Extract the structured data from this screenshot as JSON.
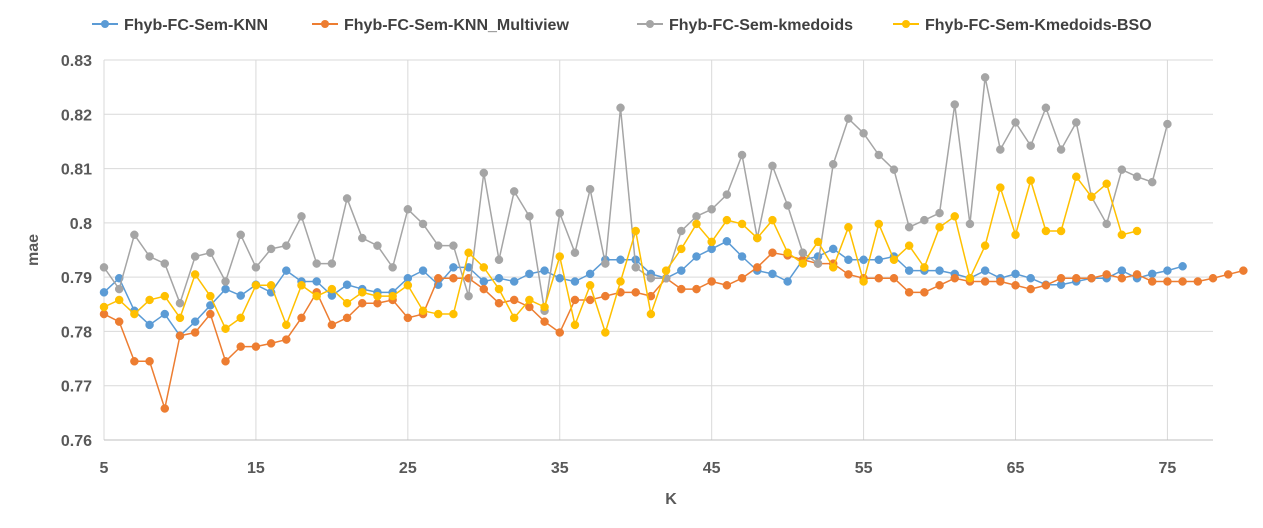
{
  "chart_data": {
    "type": "line",
    "title": "",
    "xlabel": "K",
    "ylabel": "mae",
    "xlim": [
      5,
      78
    ],
    "ylim": [
      0.76,
      0.83
    ],
    "x_ticks": [
      5,
      15,
      25,
      35,
      45,
      55,
      65,
      75
    ],
    "y_ticks": [
      0.76,
      0.77,
      0.78,
      0.79,
      0.8,
      0.81,
      0.82,
      0.83
    ],
    "x_tick_labels": [
      "5",
      "15",
      "25",
      "35",
      "45",
      "55",
      "65",
      "75"
    ],
    "y_tick_labels": [
      "0.76",
      "0.77",
      "0.78",
      "0.79",
      "0.8",
      "0.81",
      "0.82",
      "0.83"
    ],
    "grid": true,
    "legend_position": "top",
    "series": [
      {
        "name": "Fhyb-FC-Sem-KNN",
        "color": "#5B9BD5",
        "x_start": 5,
        "values": [
          0.7872,
          0.7898,
          0.7838,
          0.7812,
          0.7832,
          0.7792,
          0.7818,
          0.7848,
          0.7878,
          0.7866,
          0.7886,
          0.7872,
          0.7912,
          0.7892,
          0.7892,
          0.7866,
          0.7886,
          0.7878,
          0.7872,
          0.7872,
          0.7898,
          0.7912,
          0.7886,
          0.7918,
          0.7918,
          0.7892,
          0.7898,
          0.7892,
          0.7906,
          0.7912,
          0.7898,
          0.7892,
          0.7906,
          0.7932,
          0.7932,
          0.7932,
          0.7906,
          0.7898,
          0.7912,
          0.7938,
          0.7952,
          0.7966,
          0.7938,
          0.7912,
          0.7906,
          0.7892,
          0.7932,
          0.7938,
          0.7952,
          0.7932,
          0.7932,
          0.7932,
          0.7938,
          0.7912,
          0.7912,
          0.7912,
          0.7906,
          0.7898,
          0.7912,
          0.7898,
          0.7906,
          0.7898,
          0.7886,
          0.7886,
          0.7892,
          0.7898,
          0.7898,
          0.7912,
          0.7898,
          0.7906,
          0.7912,
          0.792
        ]
      },
      {
        "name": "Fhyb-FC-Sem-KNN_Multiview",
        "color": "#ED7D31",
        "x_start": 5,
        "values": [
          0.7832,
          0.7818,
          0.7745,
          0.7745,
          0.7658,
          0.7792,
          0.7798,
          0.7832,
          0.7745,
          0.7772,
          0.7772,
          0.7778,
          0.7785,
          0.7825,
          0.7872,
          0.7812,
          0.7825,
          0.7852,
          0.7852,
          0.7858,
          0.7825,
          0.7832,
          0.7898,
          0.7898,
          0.7898,
          0.7878,
          0.7852,
          0.7858,
          0.7845,
          0.7818,
          0.7798,
          0.7858,
          0.7858,
          0.7865,
          0.7872,
          0.7872,
          0.7865,
          0.7898,
          0.7878,
          0.7878,
          0.7892,
          0.7885,
          0.7898,
          0.7918,
          0.7945,
          0.794,
          0.7932,
          0.7925,
          0.7925,
          0.7905,
          0.7898,
          0.7898,
          0.7898,
          0.7872,
          0.7872,
          0.7885,
          0.7898,
          0.7892,
          0.7892,
          0.7892,
          0.7885,
          0.7878,
          0.7885,
          0.7898,
          0.7898,
          0.7898,
          0.7905,
          0.7898,
          0.7905,
          0.7892,
          0.7892,
          0.7892,
          0.7892,
          0.7898,
          0.7905,
          0.7912
        ]
      },
      {
        "name": "Fhyb-FC-Sem-kmedoids",
        "color": "#A5A5A5",
        "x_start": 5,
        "values": [
          0.7918,
          0.7878,
          0.7978,
          0.7938,
          0.7925,
          0.7852,
          0.7938,
          0.7945,
          0.7892,
          0.7978,
          0.7918,
          0.7952,
          0.7958,
          0.8012,
          0.7925,
          0.7925,
          0.8045,
          0.7972,
          0.7958,
          0.7918,
          0.8025,
          0.7998,
          0.7958,
          0.7958,
          0.7865,
          0.8092,
          0.7932,
          0.8058,
          0.8012,
          0.7838,
          0.8018,
          0.7945,
          0.8062,
          0.7925,
          0.8212,
          0.7918,
          0.7898,
          0.7898,
          0.7985,
          0.8012,
          0.8025,
          0.8052,
          0.8125,
          0.7972,
          0.8105,
          0.8032,
          0.7945,
          0.7925,
          0.8108,
          0.8192,
          0.8165,
          0.8125,
          0.8098,
          0.7992,
          0.8005,
          0.8018,
          0.8218,
          0.7998,
          0.8268,
          0.8135,
          0.8185,
          0.8142,
          0.8212,
          0.8135,
          0.8185,
          0.8048,
          0.7998,
          0.8098,
          0.8085,
          0.8075,
          0.8182
        ]
      },
      {
        "name": "Fhyb-FC-Sem-Kmedoids-BSO",
        "color": "#FFC000",
        "x_start": 5,
        "values": [
          0.7845,
          0.7858,
          0.7832,
          0.7858,
          0.7865,
          0.7825,
          0.7905,
          0.7865,
          0.7805,
          0.7825,
          0.7885,
          0.7885,
          0.7812,
          0.7885,
          0.7865,
          0.7878,
          0.7852,
          0.7872,
          0.7865,
          0.7865,
          0.7885,
          0.7838,
          0.7832,
          0.7832,
          0.7945,
          0.7918,
          0.7878,
          0.7825,
          0.7858,
          0.7845,
          0.7938,
          0.7812,
          0.7885,
          0.7798,
          0.7892,
          0.7985,
          0.7832,
          0.7912,
          0.7952,
          0.7998,
          0.7965,
          0.8005,
          0.7998,
          0.7972,
          0.8005,
          0.7945,
          0.7925,
          0.7965,
          0.7918,
          0.7992,
          0.7892,
          0.7998,
          0.7932,
          0.7958,
          0.7918,
          0.7992,
          0.8012,
          0.7898,
          0.7958,
          0.8065,
          0.7978,
          0.8078,
          0.7985,
          0.7985,
          0.8085,
          0.8048,
          0.8072,
          0.7978,
          0.7985
        ]
      }
    ]
  }
}
